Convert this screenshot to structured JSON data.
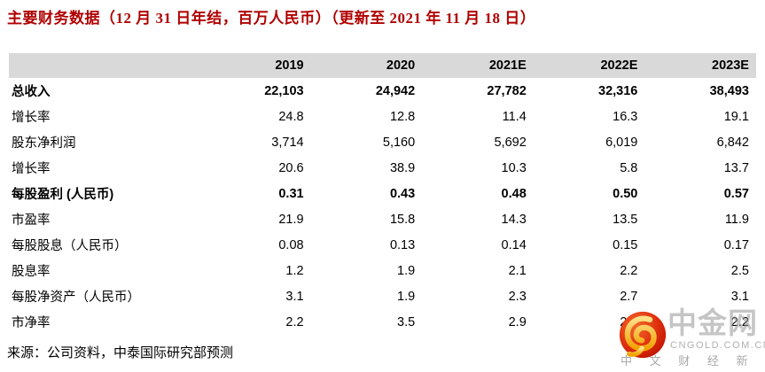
{
  "title": "主要财务数据（12 月 31 日年结，百万人民币）（更新至 2021 年 11 月 18 日）",
  "table": {
    "columns": [
      "",
      "2019",
      "2020",
      "2021E",
      "2022E",
      "2023E"
    ],
    "rows": [
      {
        "label": "总收入",
        "values": [
          "22,103",
          "24,942",
          "27,782",
          "32,316",
          "38,493"
        ],
        "bold": true
      },
      {
        "label": "增长率",
        "values": [
          "24.8",
          "12.8",
          "11.4",
          "16.3",
          "19.1"
        ],
        "bold": false
      },
      {
        "label": "股东净利润",
        "values": [
          "3,714",
          "5,160",
          "5,692",
          "6,019",
          "6,842"
        ],
        "bold": false
      },
      {
        "label": "增长率",
        "values": [
          "20.6",
          "38.9",
          "10.3",
          "5.8",
          "13.7"
        ],
        "bold": false
      },
      {
        "label": "每股盈利 (人民币)",
        "values": [
          "0.31",
          "0.43",
          "0.48",
          "0.50",
          "0.57"
        ],
        "bold": true
      },
      {
        "label": "市盈率",
        "values": [
          "21.9",
          "15.8",
          "14.3",
          "13.5",
          "11.9"
        ],
        "bold": false
      },
      {
        "label": "每股股息（人民币）",
        "values": [
          "0.08",
          "0.13",
          "0.14",
          "0.15",
          "0.17"
        ],
        "bold": false
      },
      {
        "label": "股息率",
        "values": [
          "1.2",
          "1.9",
          "2.1",
          "2.2",
          "2.5"
        ],
        "bold": false
      },
      {
        "label": "每股净资产（人民币）",
        "values": [
          "3.1",
          "1.9",
          "2.3",
          "2.7",
          "3.1"
        ],
        "bold": false
      },
      {
        "label": "市净率",
        "values": [
          "2.2",
          "3.5",
          "2.9",
          "2.5",
          "2.2"
        ],
        "bold": false
      }
    ]
  },
  "source": "来源：公司资料，中泰国际研究部预测",
  "watermark": {
    "brand": "中金网",
    "domain": "CNGOLD.COM.CN",
    "tagline": "中 文 财 经 新 媒 体"
  },
  "colors": {
    "title_red": "#b00000",
    "header_bg": "#d9d9d9",
    "watermark_gray": "#c3c3c3",
    "logo_red": "#d8260e",
    "logo_gold": "#ffc34d"
  }
}
